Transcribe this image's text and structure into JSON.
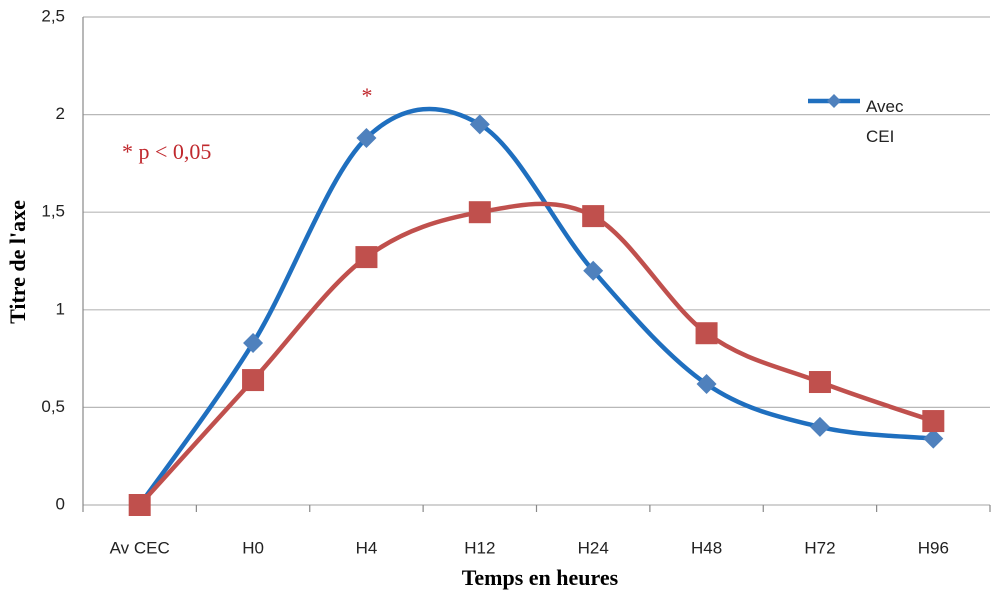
{
  "chart_data": {
    "type": "line",
    "y_label": "Titre de l'axe",
    "x_label": "Temps en heures",
    "annotations": [
      "*",
      "* p < 0,05"
    ],
    "categories": [
      "Av CEC",
      "H0",
      "H4",
      "H12",
      "H24",
      "H48",
      "H72",
      "H96"
    ],
    "series": [
      {
        "name": "Avec CEI",
        "color": "#1f6fbf",
        "marker": "diamond",
        "values": [
          0,
          0.83,
          1.88,
          1.95,
          1.2,
          0.62,
          0.4,
          0.34
        ]
      },
      {
        "color": "#c0504d",
        "marker": "square",
        "values": [
          0,
          0.64,
          1.27,
          1.5,
          1.48,
          0.88,
          0.63,
          0.43
        ]
      }
    ],
    "ylim": [
      0,
      2.5
    ],
    "yticks": [
      0,
      {
        "value": 0.5,
        "label": "0,5"
      },
      1,
      {
        "value": 1.5,
        "label": "1,5"
      },
      2,
      {
        "value": 2.5,
        "label": "2,5"
      }
    ],
    "grid": true,
    "smooth": true
  }
}
